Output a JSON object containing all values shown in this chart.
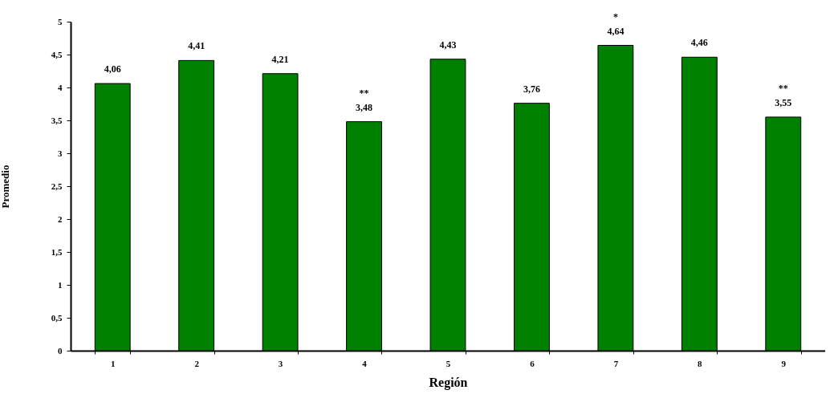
{
  "chart_data": {
    "type": "bar",
    "xlabel": "Región",
    "ylabel": "Promedio",
    "categories": [
      "1",
      "2",
      "3",
      "4",
      "5",
      "6",
      "7",
      "8",
      "9"
    ],
    "values": [
      4.06,
      4.41,
      4.21,
      3.48,
      4.43,
      3.76,
      4.64,
      4.46,
      3.55
    ],
    "value_labels": [
      "4,06",
      "4,41",
      "4,21",
      "3,48",
      "4,43",
      "3,76",
      "4,64",
      "4,46",
      "3,55"
    ],
    "color": "#008000",
    "ylim": [
      0,
      5
    ],
    "yticks": [
      0,
      {
        "value": 0.5,
        "label": "0,5"
      },
      1,
      {
        "value": 1.5,
        "label": "1,5"
      },
      2,
      {
        "value": 2.5,
        "label": "2,5"
      },
      3,
      {
        "value": 3.5,
        "label": "3,5"
      },
      4,
      {
        "value": 4.5,
        "label": "4,5"
      },
      5
    ],
    "grid": false,
    "annotations": [
      {
        "text": "**",
        "x": "4",
        "y": 3.48
      },
      {
        "text": "*",
        "x": "7",
        "y": 4.64
      },
      {
        "text": "**",
        "x": "9",
        "y": 3.55
      }
    ]
  }
}
